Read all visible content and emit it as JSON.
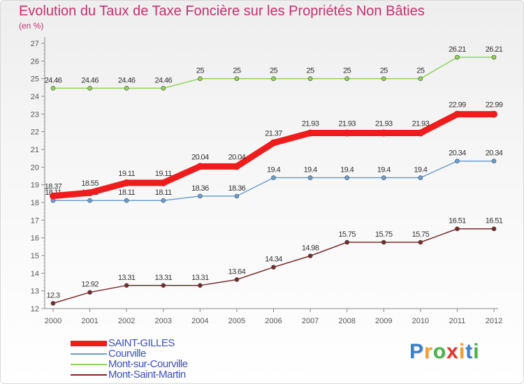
{
  "title": "Evolution du Taux de Taxe Foncière sur les Propriétés Non Bâties",
  "subtitle": "(en %)",
  "brand": {
    "letters": [
      "P",
      "r",
      "o",
      "x",
      "i",
      "t",
      "i"
    ],
    "colors": [
      "#3a7fd0",
      "#f2a12b",
      "#4bb24b",
      "#e2362b",
      "#f2a12b",
      "#3a7fd0",
      "#4bb24b"
    ]
  },
  "chart_data": {
    "type": "line",
    "title": "Evolution du Taux de Taxe Foncière sur les Propriétés Non Bâties",
    "subtitle": "(en %)",
    "x": [
      "2000",
      "2001",
      "2002",
      "2003",
      "2004",
      "2005",
      "2006",
      "2007",
      "2008",
      "2009",
      "2010",
      "2011",
      "2012"
    ],
    "ylim": [
      12,
      27
    ],
    "yticks": [
      12,
      13,
      14,
      15,
      16,
      17,
      18,
      19,
      20,
      21,
      22,
      23,
      24,
      25,
      26,
      27
    ],
    "grid": false,
    "legend_position": "bottom-left",
    "series": [
      {
        "name": "SAINT-GILLES",
        "color": "#ee1c1c",
        "width": 9,
        "values": [
          18.37,
          18.55,
          19.11,
          19.11,
          20.04,
          20.04,
          21.37,
          21.93,
          21.93,
          21.93,
          21.93,
          22.99,
          22.99
        ],
        "labels": [
          "18.37",
          "18.55",
          "19.11",
          "19.11",
          "20.04",
          "20.04",
          "21.37",
          "21.93",
          "21.93",
          "21.93",
          "21.93",
          "22.99",
          "22.99"
        ]
      },
      {
        "name": "Courville",
        "color": "#6a9fd4",
        "width": 1.5,
        "values": [
          18.11,
          18.11,
          18.11,
          18.11,
          18.36,
          18.36,
          19.4,
          19.4,
          19.4,
          19.4,
          19.4,
          20.34,
          20.34
        ],
        "labels": [
          "18.11",
          "18.11",
          "18.11",
          "18.11",
          "18.36",
          "18.36",
          "19.4",
          "19.4",
          "19.4",
          "19.4",
          "19.4",
          "20.34",
          "20.34"
        ]
      },
      {
        "name": "Mont-sur-Courville",
        "color": "#8fd45a",
        "width": 1.5,
        "values": [
          24.46,
          24.46,
          24.46,
          24.46,
          25,
          25,
          25,
          25,
          25,
          25,
          25,
          26.21,
          26.21
        ],
        "labels": [
          "24.46",
          "24.46",
          "24.46",
          "24.46",
          "25",
          "25",
          "25",
          "25",
          "25",
          "25",
          "25",
          "26.21",
          "26.21"
        ]
      },
      {
        "name": "Mont-Saint-Martin",
        "color": "#7a2a2a",
        "width": 1.5,
        "values": [
          12.3,
          12.92,
          13.31,
          13.31,
          13.31,
          13.64,
          14.34,
          14.98,
          15.75,
          15.75,
          15.75,
          16.51,
          16.51
        ],
        "labels": [
          "12.3",
          "12.92",
          "13.31",
          "13.31",
          "13.31",
          "13.64",
          "14.34",
          "14.98",
          "15.75",
          "15.75",
          "15.75",
          "16.51",
          "16.51"
        ]
      }
    ]
  }
}
